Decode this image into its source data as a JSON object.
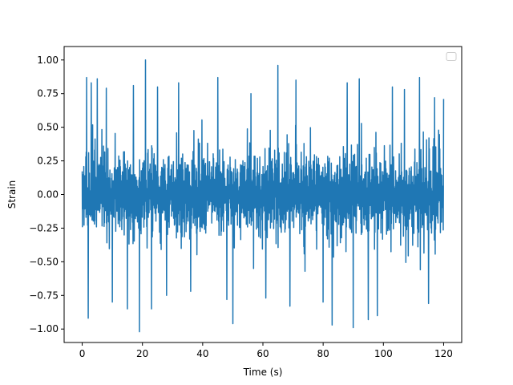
{
  "chart_data": {
    "type": "line",
    "title": "",
    "xlabel": "Time (s)",
    "ylabel": "Strain",
    "xlim": [
      -6,
      126
    ],
    "ylim": [
      -1.1,
      1.1
    ],
    "x_ticks": [
      0,
      20,
      40,
      60,
      80,
      100,
      120
    ],
    "x_tick_labels": [
      "0",
      "20",
      "40",
      "60",
      "80",
      "100",
      "120"
    ],
    "y_ticks": [
      -1.0,
      -0.75,
      -0.5,
      -0.25,
      0.0,
      0.25,
      0.5,
      0.75,
      1.0
    ],
    "y_tick_labels": [
      "−1.00",
      "−0.75",
      "−0.50",
      "−0.25",
      "0.00",
      "0.25",
      "0.50",
      "0.75",
      "1.00"
    ],
    "grid": false,
    "legend": {
      "placement": "top-right",
      "entries": []
    },
    "series": [
      {
        "color": "#1f77b4",
        "x_range": [
          0,
          120
        ],
        "typical_range": [
          -0.6,
          0.62
        ],
        "peaks": [
          {
            "x": 1.5,
            "y": 0.87
          },
          {
            "x": 2.0,
            "y": -0.92
          },
          {
            "x": 3.0,
            "y": 0.83
          },
          {
            "x": 5.0,
            "y": 0.86
          },
          {
            "x": 8.0,
            "y": 0.79
          },
          {
            "x": 10.0,
            "y": -0.8
          },
          {
            "x": 15.0,
            "y": -0.85
          },
          {
            "x": 17.0,
            "y": 0.81
          },
          {
            "x": 19.0,
            "y": -1.02
          },
          {
            "x": 21.0,
            "y": 1.0
          },
          {
            "x": 23.0,
            "y": -0.85
          },
          {
            "x": 25.0,
            "y": 0.8
          },
          {
            "x": 28.0,
            "y": -0.75
          },
          {
            "x": 32.0,
            "y": 0.83
          },
          {
            "x": 36.0,
            "y": -0.72
          },
          {
            "x": 45.0,
            "y": 0.87
          },
          {
            "x": 48.0,
            "y": -0.78
          },
          {
            "x": 50.0,
            "y": -0.96
          },
          {
            "x": 56.0,
            "y": 0.75
          },
          {
            "x": 61.0,
            "y": -0.77
          },
          {
            "x": 65.0,
            "y": 0.96
          },
          {
            "x": 69.0,
            "y": -0.83
          },
          {
            "x": 71.0,
            "y": 0.85
          },
          {
            "x": 80.0,
            "y": -0.8
          },
          {
            "x": 83.0,
            "y": -0.97
          },
          {
            "x": 88.0,
            "y": 0.83
          },
          {
            "x": 90.0,
            "y": -0.99
          },
          {
            "x": 92.0,
            "y": 0.86
          },
          {
            "x": 95.0,
            "y": -0.93
          },
          {
            "x": 98.0,
            "y": -0.9
          },
          {
            "x": 103.0,
            "y": 0.8
          },
          {
            "x": 107.0,
            "y": 0.78
          },
          {
            "x": 112.0,
            "y": 0.87
          },
          {
            "x": 115.0,
            "y": -0.81
          },
          {
            "x": 117.0,
            "y": 0.72
          },
          {
            "x": 120.0,
            "y": 0.71
          }
        ]
      }
    ]
  }
}
